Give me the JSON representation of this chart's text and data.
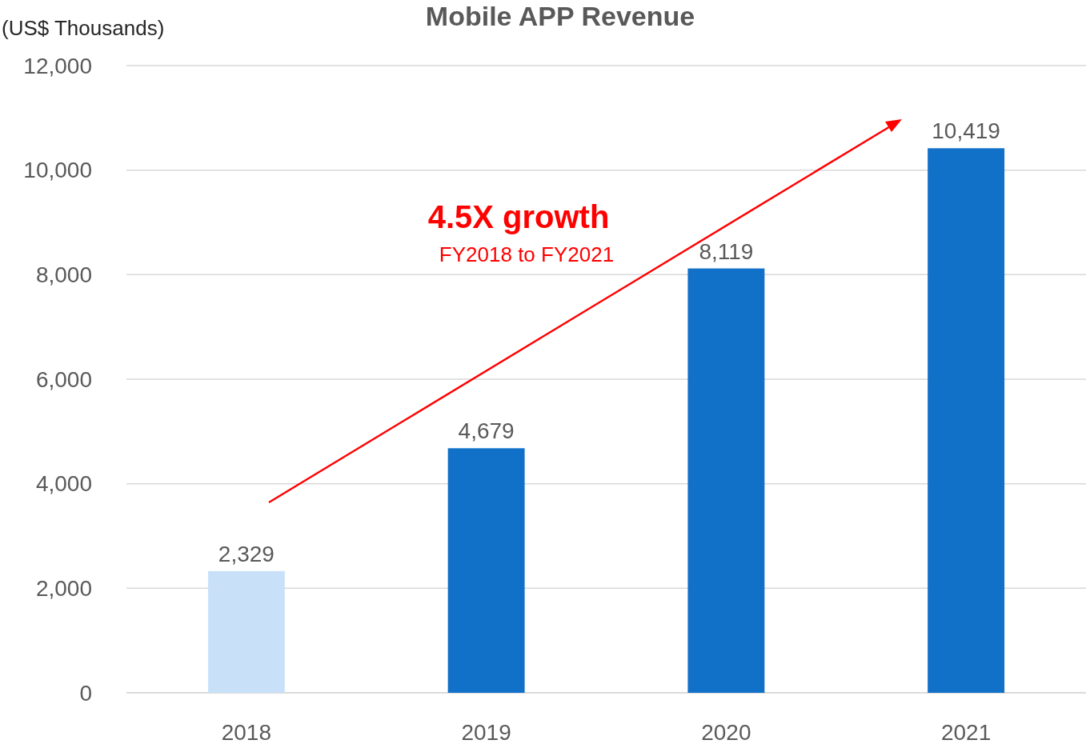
{
  "chart_data": {
    "type": "bar",
    "title": "Mobile APP Revenue",
    "ylabel": "(US$ Thousands)",
    "categories": [
      "2018",
      "2019",
      "2020",
      "2021"
    ],
    "values": [
      2329,
      4679,
      8119,
      10419
    ],
    "value_labels": [
      "2,329",
      "4,679",
      "8,119",
      "10,419"
    ],
    "colors": [
      "#c9e1f8",
      "#1170c8",
      "#1170c8",
      "#1170c8"
    ],
    "ylim": [
      0,
      12000
    ],
    "yticks": [
      0,
      {
        "value": 2000,
        "label": "2,000"
      },
      {
        "value": 4000,
        "label": "4,000"
      },
      {
        "value": 6000,
        "label": "6,000"
      },
      {
        "value": 8000,
        "label": "8,000"
      },
      {
        "value": 10000,
        "label": "10,000"
      },
      {
        "value": 12000,
        "label": "12,000"
      }
    ],
    "grid": "y",
    "annotations": [
      "4.5X growth",
      "FY2018 to FY2021"
    ]
  }
}
